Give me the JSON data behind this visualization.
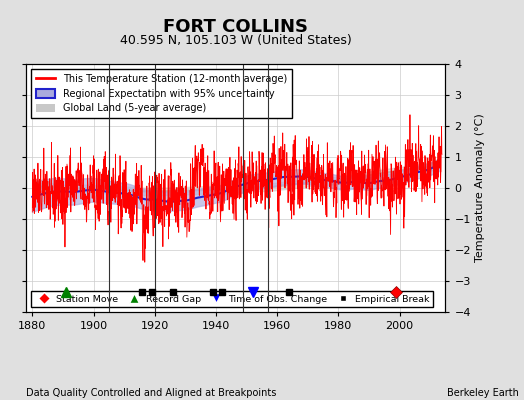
{
  "title": "FORT COLLINS",
  "subtitle": "40.595 N, 105.103 W (United States)",
  "ylabel": "Temperature Anomaly (°C)",
  "xlabel_bottom_left": "Data Quality Controlled and Aligned at Breakpoints",
  "xlabel_bottom_right": "Berkeley Earth",
  "xlim": [
    1878,
    2015
  ],
  "ylim": [
    -4,
    4
  ],
  "yticks": [
    -4,
    -3,
    -2,
    -1,
    0,
    1,
    2,
    3,
    4
  ],
  "xticks": [
    1880,
    1900,
    1920,
    1940,
    1960,
    1980,
    2000
  ],
  "bg_color": "#e0e0e0",
  "plot_bg_color": "#ffffff",
  "grid_color": "#cccccc",
  "station_moves": [
    1999
  ],
  "record_gaps": [
    1891
  ],
  "obs_changes": [
    1952
  ],
  "empirical_breaks": [
    1916,
    1919,
    1926,
    1939,
    1942,
    1964
  ],
  "vertical_lines": [
    1905,
    1920,
    1949,
    1957
  ],
  "red_line_color": "#ff0000",
  "blue_line_color": "#2222cc",
  "blue_fill_color": "#aaaadd",
  "gray_line_color": "#bbbbbb",
  "gray_fill_color": "#cccccc",
  "seed": 42,
  "title_fontsize": 13,
  "subtitle_fontsize": 9,
  "tick_fontsize": 8,
  "ylabel_fontsize": 8
}
